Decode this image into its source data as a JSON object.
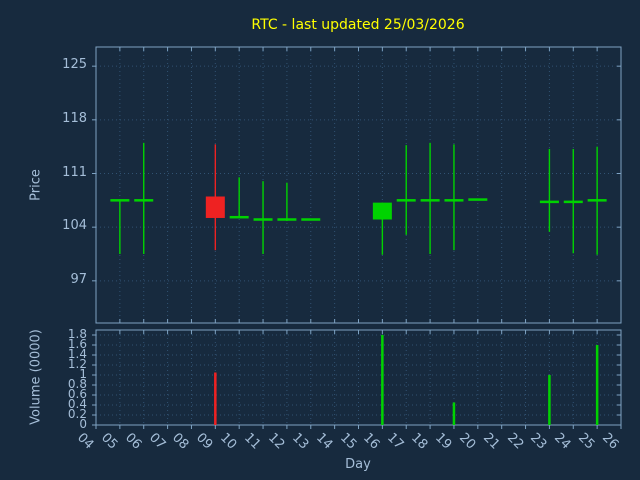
{
  "title": "RTC - last updated 25/03/2026",
  "colors": {
    "background": "#172a3e",
    "frame": "#7fa3c3",
    "tick_label": "#a5bed8",
    "grid": "#315272",
    "title": "#ffff00",
    "up": "#00d300",
    "down": "#ee2222"
  },
  "chart_data": [
    {
      "type": "candlestick",
      "title": "RTC - last updated 25/03/2026",
      "xlabel": "Day",
      "ylabel": "Price",
      "xlim": [
        4,
        26
      ],
      "ylim": [
        91.5,
        127.5
      ],
      "grid": "dotted",
      "legend": "none",
      "x_ticks": [
        {
          "label": "04",
          "value": 4
        },
        {
          "label": "05",
          "value": 5
        },
        {
          "label": "06",
          "value": 6
        },
        {
          "label": "07",
          "value": 7
        },
        {
          "label": "08",
          "value": 8
        },
        {
          "label": "09",
          "value": 9
        },
        {
          "label": "10",
          "value": 10
        },
        {
          "label": "11",
          "value": 11
        },
        {
          "label": "12",
          "value": 12
        },
        {
          "label": "13",
          "value": 13
        },
        {
          "label": "14",
          "value": 14
        },
        {
          "label": "15",
          "value": 15
        },
        {
          "label": "16",
          "value": 16
        },
        {
          "label": "17",
          "value": 17
        },
        {
          "label": "18",
          "value": 18
        },
        {
          "label": "19",
          "value": 19
        },
        {
          "label": "20",
          "value": 20
        },
        {
          "label": "21",
          "value": 21
        },
        {
          "label": "22",
          "value": 22
        },
        {
          "label": "23",
          "value": 23
        },
        {
          "label": "24",
          "value": 24
        },
        {
          "label": "25",
          "value": 25
        },
        {
          "label": "26",
          "value": 26
        }
      ],
      "y_ticks": [
        {
          "label": "125",
          "value": 125
        },
        {
          "label": "118",
          "value": 118
        },
        {
          "label": "111",
          "value": 111
        },
        {
          "label": "104",
          "value": 104
        },
        {
          "label": "97",
          "value": 97
        }
      ],
      "candles": [
        {
          "day": 5,
          "open": 107.5,
          "high": 107.5,
          "low": 100.5,
          "close": 107.5,
          "direction": "up"
        },
        {
          "day": 6,
          "open": 107.5,
          "high": 115.0,
          "low": 100.5,
          "close": 107.5,
          "direction": "up"
        },
        {
          "day": 9,
          "open": 108.0,
          "high": 114.8,
          "low": 101.0,
          "close": 105.2,
          "direction": "down"
        },
        {
          "day": 10,
          "open": 105.3,
          "high": 110.5,
          "low": 105.3,
          "close": 105.3,
          "direction": "up"
        },
        {
          "day": 11,
          "open": 105.0,
          "high": 110.0,
          "low": 100.5,
          "close": 105.0,
          "direction": "up"
        },
        {
          "day": 12,
          "open": 105.0,
          "high": 109.8,
          "low": 104.8,
          "close": 105.0,
          "direction": "up"
        },
        {
          "day": 13,
          "open": 105.0,
          "high": 105.0,
          "low": 105.0,
          "close": 105.0,
          "direction": "up"
        },
        {
          "day": 16,
          "open": 105.0,
          "high": 107.2,
          "low": 100.4,
          "close": 107.2,
          "direction": "up"
        },
        {
          "day": 17,
          "open": 107.5,
          "high": 114.7,
          "low": 103.0,
          "close": 107.5,
          "direction": "up"
        },
        {
          "day": 18,
          "open": 107.5,
          "high": 115.0,
          "low": 100.5,
          "close": 107.5,
          "direction": "up"
        },
        {
          "day": 19,
          "open": 107.5,
          "high": 114.8,
          "low": 101.0,
          "close": 107.5,
          "direction": "up"
        },
        {
          "day": 20,
          "open": 107.6,
          "high": 107.6,
          "low": 107.6,
          "close": 107.6,
          "direction": "up"
        },
        {
          "day": 23,
          "open": 107.3,
          "high": 114.2,
          "low": 103.4,
          "close": 107.3,
          "direction": "up"
        },
        {
          "day": 24,
          "open": 107.3,
          "high": 114.2,
          "low": 100.6,
          "close": 107.3,
          "direction": "up"
        },
        {
          "day": 25,
          "open": 107.5,
          "high": 114.5,
          "low": 100.4,
          "close": 107.5,
          "direction": "up"
        }
      ]
    },
    {
      "type": "bar",
      "ylabel": "Volume (0000)",
      "ylim": [
        0,
        1.9
      ],
      "grid": "dotted",
      "y_ticks": [
        {
          "label": "1.8",
          "value": 1.8
        },
        {
          "label": "1.6",
          "value": 1.6
        },
        {
          "label": "1.4",
          "value": 1.4
        },
        {
          "label": "1.2",
          "value": 1.2
        },
        {
          "label": "1",
          "value": 1.0
        },
        {
          "label": "0.8",
          "value": 0.8
        },
        {
          "label": "0.6",
          "value": 0.6
        },
        {
          "label": "0.4",
          "value": 0.4
        },
        {
          "label": "0.2",
          "value": 0.2
        },
        {
          "label": "0",
          "value": 0
        }
      ],
      "bars": [
        {
          "day": 9,
          "value": 1.05,
          "direction": "down"
        },
        {
          "day": 16,
          "value": 1.8,
          "direction": "up"
        },
        {
          "day": 19,
          "value": 0.45,
          "direction": "up"
        },
        {
          "day": 23,
          "value": 1.0,
          "direction": "up"
        },
        {
          "day": 25,
          "value": 1.6,
          "direction": "up"
        }
      ]
    }
  ]
}
